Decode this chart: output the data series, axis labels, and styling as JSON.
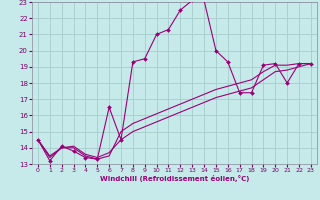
{
  "xlabel": "Windchill (Refroidissement éolien,°C)",
  "background_color": "#c6eaea",
  "grid_color": "#a8cccc",
  "line_color": "#990077",
  "xlim": [
    -0.5,
    23.5
  ],
  "ylim": [
    13,
    23
  ],
  "xticks": [
    0,
    1,
    2,
    3,
    4,
    5,
    6,
    7,
    8,
    9,
    10,
    11,
    12,
    13,
    14,
    15,
    16,
    17,
    18,
    19,
    20,
    21,
    22,
    23
  ],
  "yticks": [
    13,
    14,
    15,
    16,
    17,
    18,
    19,
    20,
    21,
    22,
    23
  ],
  "curve1_x": [
    0,
    1,
    2,
    3,
    4,
    5,
    6,
    7,
    8,
    9,
    10,
    11,
    12,
    13,
    14,
    15,
    16,
    17,
    18,
    19,
    20,
    21,
    22,
    23
  ],
  "curve1_y": [
    14.5,
    13.2,
    14.1,
    13.8,
    13.4,
    13.3,
    16.5,
    14.5,
    19.3,
    19.5,
    21.0,
    21.3,
    22.5,
    23.1,
    23.1,
    20.0,
    19.3,
    17.4,
    17.4,
    19.1,
    19.2,
    18.0,
    19.2,
    19.2
  ],
  "curve2_x": [
    0,
    1,
    2,
    3,
    4,
    5,
    6,
    7,
    8,
    9,
    10,
    11,
    12,
    13,
    14,
    15,
    16,
    17,
    18,
    19,
    20,
    21,
    22,
    23
  ],
  "curve2_y": [
    14.5,
    13.5,
    14.0,
    14.1,
    13.6,
    13.4,
    13.7,
    14.5,
    15.0,
    15.3,
    15.6,
    15.9,
    16.2,
    16.5,
    16.8,
    17.1,
    17.3,
    17.5,
    17.7,
    18.2,
    18.7,
    18.8,
    19.0,
    19.2
  ],
  "curve3_x": [
    0,
    1,
    2,
    3,
    4,
    5,
    6,
    7,
    8,
    9,
    10,
    11,
    12,
    13,
    14,
    15,
    16,
    17,
    18,
    19,
    20,
    21,
    22,
    23
  ],
  "curve3_y": [
    14.5,
    13.4,
    14.0,
    14.0,
    13.5,
    13.3,
    13.5,
    15.0,
    15.5,
    15.8,
    16.1,
    16.4,
    16.7,
    17.0,
    17.3,
    17.6,
    17.8,
    18.0,
    18.2,
    18.7,
    19.1,
    19.1,
    19.2,
    19.2
  ]
}
